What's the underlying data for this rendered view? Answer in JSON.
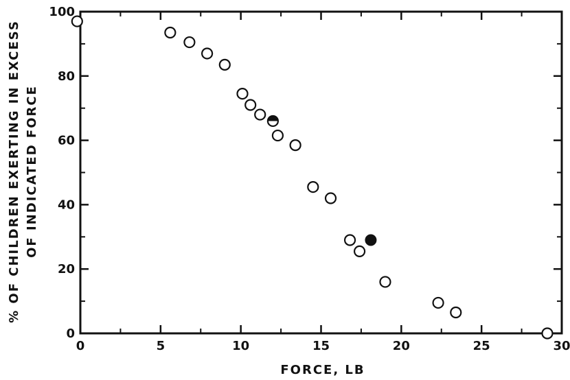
{
  "chart_data": {
    "type": "scatter",
    "title": "",
    "xlabel": "FORCE,  LB",
    "ylabel_lines": [
      "% OF CHILDREN EXERTING IN EXCESS",
      "OF INDICATED FORCE"
    ],
    "xlim": [
      0,
      30
    ],
    "ylim": [
      0,
      100
    ],
    "x_ticks": [
      0,
      5,
      10,
      15,
      20,
      25,
      30
    ],
    "y_ticks": [
      0,
      20,
      40,
      60,
      80,
      100
    ],
    "x_tick_labels": [
      "0",
      "5",
      "10",
      "15",
      "20",
      "25",
      "30"
    ],
    "y_tick_labels": [
      "0",
      "20",
      "40",
      "60",
      "80",
      "100"
    ],
    "grid": false,
    "series": [
      {
        "marker": "open-circle",
        "points": [
          {
            "x": -0.2,
            "y": 97
          },
          {
            "x": 5.6,
            "y": 93.5
          },
          {
            "x": 6.8,
            "y": 90.5
          },
          {
            "x": 7.9,
            "y": 87
          },
          {
            "x": 9.0,
            "y": 83.5
          },
          {
            "x": 10.1,
            "y": 74.5
          },
          {
            "x": 10.6,
            "y": 71
          },
          {
            "x": 11.2,
            "y": 68
          },
          {
            "x": 12.3,
            "y": 61.5
          },
          {
            "x": 13.4,
            "y": 58.5
          },
          {
            "x": 14.5,
            "y": 45.5
          },
          {
            "x": 15.6,
            "y": 42
          },
          {
            "x": 16.8,
            "y": 29
          },
          {
            "x": 17.4,
            "y": 25.5
          },
          {
            "x": 19.0,
            "y": 16
          },
          {
            "x": 22.3,
            "y": 9.5
          },
          {
            "x": 23.4,
            "y": 6.5
          },
          {
            "x": 29.1,
            "y": 0
          }
        ]
      },
      {
        "marker": "half-filled-circle",
        "points": [
          {
            "x": 12.0,
            "y": 66
          }
        ]
      },
      {
        "marker": "filled-circle",
        "points": [
          {
            "x": 18.1,
            "y": 29
          }
        ]
      }
    ]
  }
}
